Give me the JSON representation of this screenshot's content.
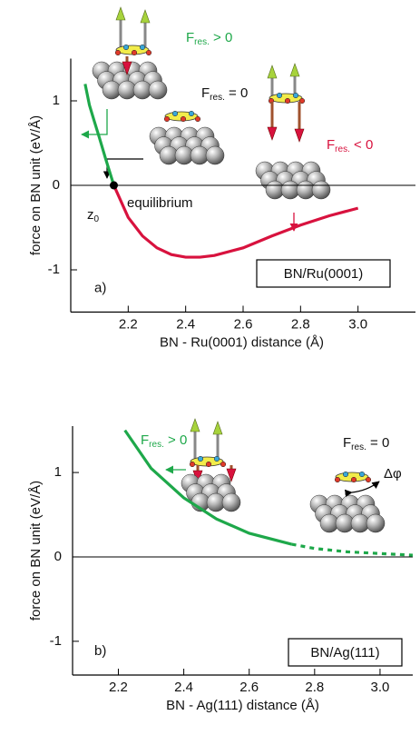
{
  "chart_data": [
    {
      "type": "line",
      "panel": "a)",
      "box_label": "BN/Ru(0001)",
      "x_label": "BN - Ru(0001) distance (Å)",
      "y_label": "force on BN unit (eV/Å)",
      "xlim": [
        2.0,
        3.2
      ],
      "xticks": [
        2.2,
        2.4,
        2.6,
        2.8,
        {
          "value": 3,
          "label": "3.0"
        }
      ],
      "ylim": [
        -1.5,
        1.5
      ],
      "yticks": [
        1,
        0,
        -1
      ],
      "series": [
        {
          "color": "#1ea84a",
          "style": "solid",
          "x": [
            2.05,
            2.065,
            2.08,
            2.1,
            2.12,
            2.15
          ],
          "values": [
            1.2,
            0.95,
            0.78,
            0.56,
            0.33,
            0
          ]
        },
        {
          "color": "#d8123e",
          "style": "solid",
          "x": [
            2.15,
            2.2,
            2.25,
            2.3,
            2.35,
            2.4,
            2.45,
            2.5,
            2.6,
            2.7,
            2.8,
            2.9,
            3.0
          ],
          "values": [
            0,
            -0.38,
            -0.6,
            -0.74,
            -0.82,
            -0.85,
            -0.85,
            -0.83,
            -0.74,
            -0.6,
            -0.47,
            -0.36,
            -0.27
          ]
        }
      ],
      "points": [
        {
          "x": 2.15,
          "y": 0,
          "label": "equilibrium"
        }
      ],
      "annotations": {
        "z": {
          "main": "z",
          "sub": "0"
        },
        "pos": {
          "main": "F",
          "sub": "res.",
          "rest": " > 0"
        },
        "zero": {
          "main": "F",
          "sub": "res.",
          "rest": " = 0"
        },
        "neg": {
          "main": "F",
          "sub": "res.",
          "rest": " < 0"
        }
      }
    },
    {
      "type": "line",
      "panel": "b)",
      "box_label": "BN/Ag(111)",
      "x_label": "BN - Ag(111) distance (Å)",
      "y_label": "force on BN unit (eV/Å)",
      "xlim": [
        2.06,
        3.1
      ],
      "xticks": [
        2.2,
        2.4,
        2.6,
        2.8,
        {
          "value": 3,
          "label": "3.0"
        }
      ],
      "ylim": [
        -1.4,
        1.55
      ],
      "yticks": [
        1,
        0,
        -1
      ],
      "series": [
        {
          "color": "#1ea84a",
          "style": "solid",
          "x": [
            2.22,
            2.3,
            2.4,
            2.5,
            2.6,
            2.73
          ],
          "values": [
            1.5,
            1.05,
            0.7,
            0.45,
            0.28,
            0.15
          ]
        },
        {
          "color": "#1ea84a",
          "style": "dotted",
          "x": [
            2.73,
            2.8,
            2.9,
            3.0,
            3.1
          ],
          "values": [
            0.15,
            0.1,
            0.06,
            0.04,
            0.02
          ]
        }
      ],
      "annotations": {
        "pos": {
          "main": "F",
          "sub": "res.",
          "rest": " > 0"
        },
        "zero": {
          "main": "F",
          "sub": "res.",
          "rest": " = 0"
        },
        "rot": "Δφ"
      }
    }
  ]
}
